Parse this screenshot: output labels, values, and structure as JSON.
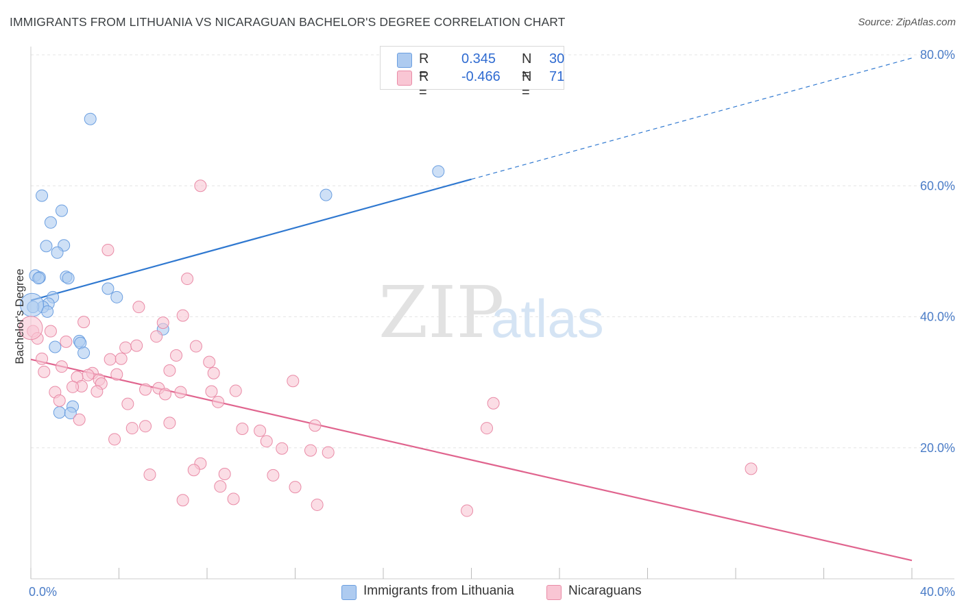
{
  "title": "IMMIGRANTS FROM LITHUANIA VS NICARAGUAN BACHELOR'S DEGREE CORRELATION CHART",
  "source": "Source: ZipAtlas.com",
  "watermark": {
    "zip": "ZIP",
    "atlas": "atlas"
  },
  "legend": {
    "rows": [
      {
        "r_label": "R =",
        "r_value": "0.345",
        "n_label": "N =",
        "n_value": "30",
        "color": "#aecbf0",
        "border": "#6a9ee0"
      },
      {
        "r_label": "R =",
        "r_value": "-0.466",
        "n_label": "N =",
        "n_value": "71",
        "color": "#f9c6d4",
        "border": "#e98aa6"
      }
    ]
  },
  "bottom_legend": [
    {
      "label": "Immigrants from Lithuania",
      "color": "#aecbf0",
      "border": "#6a9ee0"
    },
    {
      "label": "Nicaraguans",
      "color": "#f9c6d4",
      "border": "#e98aa6"
    }
  ],
  "chart_data": {
    "type": "scatter",
    "xlabel": "",
    "ylabel": "Bachelor's Degree",
    "xlim": [
      0,
      40
    ],
    "ylim": [
      0,
      80
    ],
    "x_tick_labels": [
      {
        "value": 0,
        "label": "0.0%"
      },
      {
        "value": 40,
        "label": "40.0%"
      }
    ],
    "y_tick_labels": [
      {
        "value": 20,
        "label": "20.0%"
      },
      {
        "value": 40,
        "label": "40.0%"
      },
      {
        "value": 60,
        "label": "60.0%"
      },
      {
        "value": 80,
        "label": "80.0%"
      }
    ],
    "grid": "horizontal dashed",
    "series": [
      {
        "name": "Immigrants from Lithuania",
        "color": "#6a9ee0",
        "fill": "#aecbf0",
        "trend": {
          "x": [
            0,
            20
          ],
          "y": [
            42.5,
            61.0
          ],
          "dashed_extension_to": [
            40,
            79.5
          ],
          "color": "#2f78d0"
        },
        "points": [
          [
            2.7,
            70.2
          ],
          [
            0.5,
            58.5
          ],
          [
            1.4,
            56.2
          ],
          [
            0.9,
            54.4
          ],
          [
            13.4,
            58.6
          ],
          [
            18.5,
            62.2
          ],
          [
            0.7,
            50.8
          ],
          [
            1.5,
            50.9
          ],
          [
            1.2,
            49.8
          ],
          [
            0.2,
            46.3
          ],
          [
            0.4,
            46.0
          ],
          [
            0.35,
            45.9
          ],
          [
            1.6,
            46.1
          ],
          [
            1.7,
            45.9
          ],
          [
            3.5,
            44.3
          ],
          [
            3.9,
            43.0
          ],
          [
            1.0,
            43.0
          ],
          [
            0.8,
            42.0
          ],
          [
            0.55,
            41.5
          ],
          [
            0.75,
            40.8
          ],
          [
            0.1,
            41.5
          ],
          [
            6.0,
            38.1
          ],
          [
            2.2,
            36.3
          ],
          [
            2.25,
            36.0
          ],
          [
            1.1,
            35.4
          ],
          [
            2.4,
            34.5
          ],
          [
            1.9,
            26.3
          ],
          [
            1.3,
            25.4
          ],
          [
            1.8,
            25.3
          ],
          [
            0.05,
            41.8
          ]
        ]
      },
      {
        "name": "Nicaraguans",
        "color": "#e98aa6",
        "fill": "#f9c6d4",
        "trend": {
          "x": [
            0,
            40
          ],
          "y": [
            33.5,
            2.8
          ],
          "color": "#e0648e"
        },
        "points": [
          [
            0.1,
            37.8
          ],
          [
            0.3,
            36.7
          ],
          [
            0.9,
            37.8
          ],
          [
            1.6,
            36.2
          ],
          [
            2.4,
            39.2
          ],
          [
            7.7,
            60.0
          ],
          [
            3.5,
            50.2
          ],
          [
            7.1,
            45.8
          ],
          [
            4.9,
            41.5
          ],
          [
            6.0,
            39.1
          ],
          [
            6.9,
            40.2
          ],
          [
            5.7,
            37.0
          ],
          [
            4.3,
            35.3
          ],
          [
            4.8,
            35.6
          ],
          [
            7.5,
            35.5
          ],
          [
            0.5,
            33.6
          ],
          [
            1.4,
            32.4
          ],
          [
            0.6,
            31.6
          ],
          [
            3.6,
            33.5
          ],
          [
            4.1,
            33.6
          ],
          [
            6.6,
            34.1
          ],
          [
            8.1,
            33.1
          ],
          [
            6.3,
            31.8
          ],
          [
            8.3,
            31.4
          ],
          [
            2.8,
            31.4
          ],
          [
            2.6,
            31.1
          ],
          [
            2.1,
            30.8
          ],
          [
            3.9,
            31.2
          ],
          [
            3.1,
            30.4
          ],
          [
            3.2,
            29.8
          ],
          [
            2.3,
            29.4
          ],
          [
            1.9,
            29.3
          ],
          [
            11.9,
            30.2
          ],
          [
            5.2,
            28.9
          ],
          [
            5.8,
            29.1
          ],
          [
            6.1,
            28.2
          ],
          [
            6.8,
            28.5
          ],
          [
            8.2,
            28.6
          ],
          [
            9.3,
            28.7
          ],
          [
            3.0,
            28.6
          ],
          [
            1.1,
            28.5
          ],
          [
            1.3,
            27.2
          ],
          [
            4.4,
            26.7
          ],
          [
            8.5,
            27.0
          ],
          [
            2.2,
            24.3
          ],
          [
            21.0,
            26.8
          ],
          [
            6.3,
            23.8
          ],
          [
            5.2,
            23.3
          ],
          [
            4.6,
            23.0
          ],
          [
            9.6,
            22.9
          ],
          [
            10.4,
            22.6
          ],
          [
            12.9,
            23.4
          ],
          [
            20.7,
            23.0
          ],
          [
            3.8,
            21.3
          ],
          [
            10.7,
            21.0
          ],
          [
            11.4,
            19.9
          ],
          [
            12.7,
            19.6
          ],
          [
            13.5,
            19.3
          ],
          [
            7.7,
            17.6
          ],
          [
            7.4,
            16.6
          ],
          [
            8.8,
            16.0
          ],
          [
            5.4,
            15.9
          ],
          [
            11.0,
            15.8
          ],
          [
            32.7,
            16.8
          ],
          [
            8.6,
            14.1
          ],
          [
            12.0,
            14.0
          ],
          [
            6.9,
            12.0
          ],
          [
            9.2,
            12.2
          ],
          [
            13.0,
            11.3
          ],
          [
            19.8,
            10.4
          ],
          [
            0.0,
            38.3
          ]
        ]
      }
    ]
  }
}
